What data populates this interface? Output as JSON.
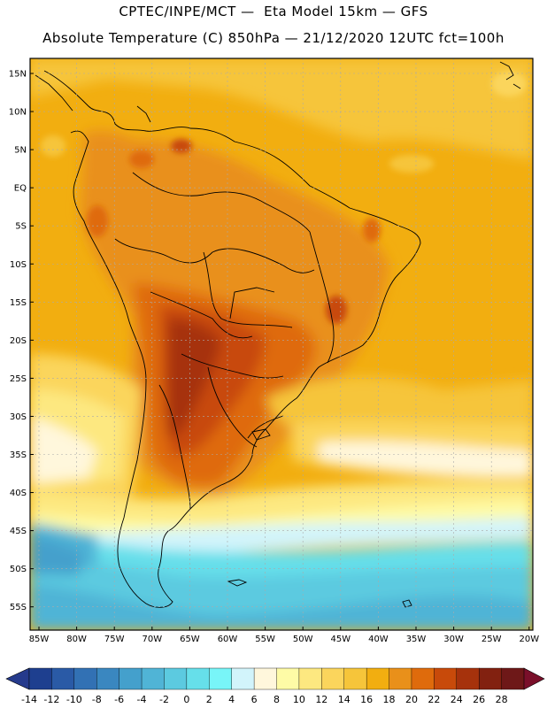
{
  "header": {
    "line1": "CPTEC/INPE/MCT —  Eta Model 15km — GFS",
    "line2": "Absolute Temperature (C) 850hPa — 21/12/2020 12UTC fct=100h"
  },
  "map": {
    "lat_labels": [
      "15N",
      "10N",
      "5N",
      "EQ",
      "5S",
      "10S",
      "15S",
      "20S",
      "25S",
      "30S",
      "35S",
      "40S",
      "45S",
      "50S",
      "55S"
    ],
    "lon_labels": [
      "85W",
      "80W",
      "75W",
      "70W",
      "65W",
      "60W",
      "55W",
      "50W",
      "45W",
      "40W",
      "35W",
      "30W",
      "25W",
      "20W"
    ]
  },
  "colorbar": {
    "labels": [
      "-14",
      "-12",
      "-10",
      "-8",
      "-6",
      "-4",
      "-2",
      "0",
      "2",
      "4",
      "6",
      "8",
      "10",
      "12",
      "14",
      "16",
      "18",
      "20",
      "22",
      "24",
      "26",
      "28"
    ],
    "colors": [
      "#1e3f8f",
      "#2a5aa6",
      "#3271b4",
      "#3a87c0",
      "#44a0cc",
      "#50b4d6",
      "#5ccae0",
      "#66dfea",
      "#78f5f8",
      "#d2f4fb",
      "#fff7dc",
      "#fefba6",
      "#fde880",
      "#fbd55c",
      "#f6c53a",
      "#f2ae10",
      "#e9901a",
      "#df6b0c",
      "#c84a0a",
      "#a6320c",
      "#822110",
      "#6e1818"
    ],
    "under_color": "#253a8c",
    "over_color": "#7a0f2a"
  }
}
